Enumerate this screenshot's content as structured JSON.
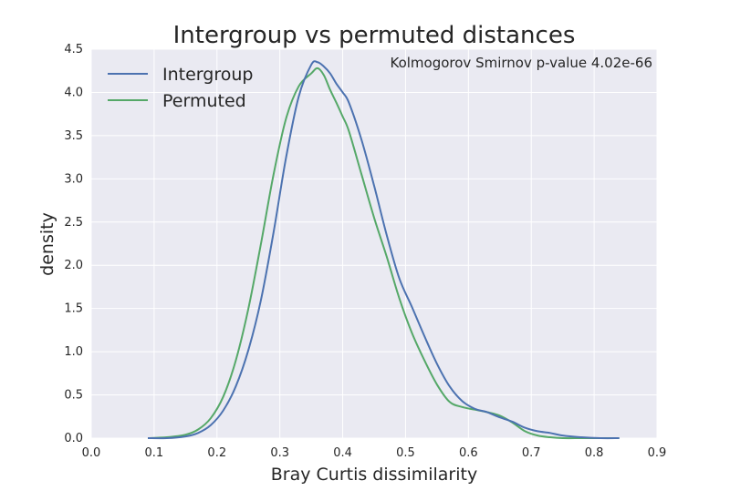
{
  "chart_data": {
    "type": "line",
    "title": "Intergroup vs permuted distances",
    "xlabel": "Bray Curtis dissimilarity",
    "ylabel": "density",
    "xlim": [
      0.0,
      0.9
    ],
    "ylim": [
      0.0,
      4.5
    ],
    "xticks": [
      "0.0",
      "0.1",
      "0.2",
      "0.3",
      "0.4",
      "0.5",
      "0.6",
      "0.7",
      "0.8",
      "0.9"
    ],
    "yticks": [
      "0.0",
      "0.5",
      "1.0",
      "1.5",
      "2.0",
      "2.5",
      "3.0",
      "3.5",
      "4.0",
      "4.5"
    ],
    "grid": true,
    "legend_position": "top-left",
    "annotation": "Kolmogorov Smirnov p-value 4.02e-66",
    "background_color": "#eaeaf2",
    "grid_color": "#ffffff",
    "series": [
      {
        "name": "Intergroup",
        "color": "#4c72b0",
        "x": [
          0.09,
          0.12,
          0.15,
          0.17,
          0.19,
          0.21,
          0.23,
          0.25,
          0.27,
          0.29,
          0.31,
          0.33,
          0.35,
          0.36,
          0.37,
          0.38,
          0.39,
          0.4,
          0.41,
          0.43,
          0.45,
          0.47,
          0.49,
          0.51,
          0.53,
          0.55,
          0.57,
          0.59,
          0.61,
          0.63,
          0.65,
          0.67,
          0.69,
          0.71,
          0.73,
          0.75,
          0.78,
          0.81,
          0.84
        ],
        "y": [
          0.0,
          0.0,
          0.02,
          0.06,
          0.15,
          0.32,
          0.6,
          1.02,
          1.6,
          2.38,
          3.25,
          3.95,
          4.32,
          4.35,
          4.3,
          4.22,
          4.1,
          4.0,
          3.88,
          3.45,
          2.92,
          2.35,
          1.85,
          1.52,
          1.18,
          0.86,
          0.6,
          0.43,
          0.34,
          0.3,
          0.24,
          0.19,
          0.12,
          0.08,
          0.06,
          0.03,
          0.01,
          0.0,
          0.0
        ]
      },
      {
        "name": "Permuted",
        "color": "#55a868",
        "x": [
          0.09,
          0.12,
          0.15,
          0.17,
          0.19,
          0.21,
          0.23,
          0.25,
          0.27,
          0.29,
          0.31,
          0.33,
          0.35,
          0.36,
          0.37,
          0.38,
          0.39,
          0.4,
          0.41,
          0.43,
          0.45,
          0.47,
          0.49,
          0.51,
          0.53,
          0.55,
          0.57,
          0.59,
          0.61,
          0.63,
          0.65,
          0.67,
          0.69,
          0.71,
          0.73,
          0.75,
          0.78,
          0.81,
          0.84
        ],
        "y": [
          0.0,
          0.01,
          0.04,
          0.1,
          0.23,
          0.48,
          0.9,
          1.5,
          2.25,
          3.05,
          3.7,
          4.07,
          4.22,
          4.28,
          4.2,
          4.03,
          3.88,
          3.72,
          3.55,
          3.05,
          2.55,
          2.1,
          1.62,
          1.22,
          0.9,
          0.62,
          0.42,
          0.36,
          0.33,
          0.3,
          0.26,
          0.18,
          0.08,
          0.03,
          0.01,
          0.0,
          0.0,
          0.0,
          0.0
        ]
      }
    ]
  }
}
